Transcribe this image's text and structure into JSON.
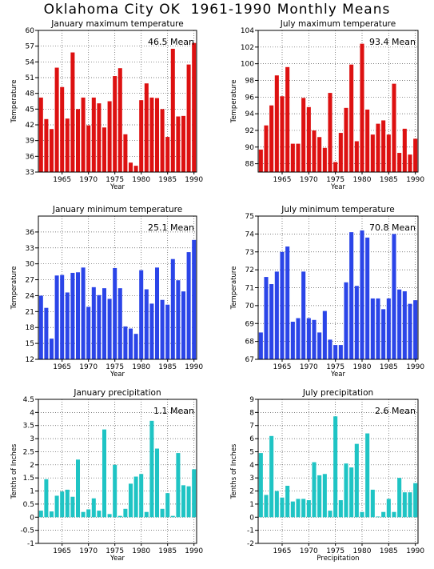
{
  "title": "Oklahoma City OK  1961-1990 Monthly Means",
  "chart_data": [
    {
      "id": "jan-max",
      "type": "bar",
      "title": "January maximum temperature",
      "xlabel": "Year",
      "ylabel": "Temperature",
      "mean_label": "46.5 Mean",
      "color": "#dd1111",
      "ylim": [
        33,
        60
      ],
      "baseline": 33,
      "yticks": [
        33,
        36,
        39,
        42,
        45,
        48,
        51,
        54,
        57,
        60
      ],
      "xlim": [
        1960.5,
        1990.5
      ],
      "xticks": [
        1965,
        1970,
        1975,
        1980,
        1985,
        1990
      ],
      "x": [
        1961,
        1962,
        1963,
        1964,
        1965,
        1966,
        1967,
        1968,
        1969,
        1970,
        1971,
        1972,
        1973,
        1974,
        1975,
        1976,
        1977,
        1978,
        1979,
        1980,
        1981,
        1982,
        1983,
        1984,
        1985,
        1986,
        1987,
        1988,
        1989,
        1990
      ],
      "values": [
        47.2,
        43.1,
        41.2,
        52.9,
        49.2,
        43.2,
        55.8,
        45.0,
        47.2,
        41.9,
        47.2,
        46.1,
        41.5,
        46.5,
        51.3,
        52.8,
        40.2,
        34.8,
        34.2,
        46.7,
        49.9,
        47.2,
        47.1,
        45.0,
        39.7,
        56.5,
        43.6,
        43.7,
        53.5,
        57.6
      ]
    },
    {
      "id": "jul-max",
      "type": "bar",
      "title": "July maximum temperature",
      "xlabel": "Year",
      "ylabel": "Temperature",
      "mean_label": "93.4 Mean",
      "color": "#dd1111",
      "ylim": [
        87,
        104
      ],
      "baseline": 87,
      "yticks": [
        88,
        90,
        92,
        94,
        96,
        98,
        100,
        102,
        104
      ],
      "xlim": [
        1960.5,
        1990.5
      ],
      "xticks": [
        1965,
        1970,
        1975,
        1980,
        1985,
        1990
      ],
      "x": [
        1961,
        1962,
        1963,
        1964,
        1965,
        1966,
        1967,
        1968,
        1969,
        1970,
        1971,
        1972,
        1973,
        1974,
        1975,
        1976,
        1977,
        1978,
        1979,
        1980,
        1981,
        1982,
        1983,
        1984,
        1985,
        1986,
        1987,
        1988,
        1989,
        1990
      ],
      "values": [
        89.7,
        92.6,
        95.0,
        98.6,
        96.1,
        99.6,
        90.4,
        90.4,
        95.9,
        94.8,
        92.0,
        91.2,
        89.9,
        96.5,
        88.2,
        91.7,
        94.7,
        99.9,
        90.7,
        102.4,
        94.5,
        91.5,
        92.8,
        93.2,
        91.5,
        97.6,
        89.3,
        92.2,
        89.1,
        91.0
      ]
    },
    {
      "id": "jan-min",
      "type": "bar",
      "title": "January minimum temperature",
      "xlabel": "Year",
      "ylabel": "Temperature",
      "mean_label": "25.1 Mean",
      "color": "#2b45e8",
      "ylim": [
        12,
        39
      ],
      "baseline": 12,
      "yticks": [
        12,
        15,
        18,
        21,
        24,
        27,
        30,
        33,
        36
      ],
      "xlim": [
        1960.5,
        1990.5
      ],
      "xticks": [
        1965,
        1970,
        1975,
        1980,
        1985,
        1990
      ],
      "x": [
        1961,
        1962,
        1963,
        1964,
        1965,
        1966,
        1967,
        1968,
        1969,
        1970,
        1971,
        1972,
        1973,
        1974,
        1975,
        1976,
        1977,
        1978,
        1979,
        1980,
        1981,
        1982,
        1983,
        1984,
        1985,
        1986,
        1987,
        1988,
        1989,
        1990
      ],
      "values": [
        24.0,
        21.7,
        15.9,
        27.8,
        27.9,
        24.6,
        28.3,
        28.4,
        29.3,
        21.9,
        25.6,
        24.1,
        25.4,
        23.4,
        29.2,
        25.4,
        18.2,
        17.8,
        16.8,
        28.8,
        25.2,
        22.5,
        29.3,
        23.2,
        22.3,
        30.9,
        26.9,
        24.8,
        32.2,
        34.5
      ]
    },
    {
      "id": "jul-min",
      "type": "bar",
      "title": "July minimum temperature",
      "xlabel": "Year",
      "ylabel": "Temperature",
      "mean_label": "70.8 Mean",
      "color": "#2b45e8",
      "ylim": [
        67,
        75
      ],
      "baseline": 67,
      "yticks": [
        67,
        68,
        69,
        70,
        71,
        72,
        73,
        74,
        75
      ],
      "xlim": [
        1960.5,
        1990.5
      ],
      "xticks": [
        1965,
        1970,
        1975,
        1980,
        1985,
        1990
      ],
      "x": [
        1961,
        1962,
        1963,
        1964,
        1965,
        1966,
        1967,
        1968,
        1969,
        1970,
        1971,
        1972,
        1973,
        1974,
        1975,
        1976,
        1977,
        1978,
        1979,
        1980,
        1981,
        1982,
        1983,
        1984,
        1985,
        1986,
        1987,
        1988,
        1989,
        1990
      ],
      "values": [
        68.5,
        71.6,
        71.2,
        71.9,
        73.0,
        73.3,
        69.1,
        69.3,
        71.9,
        69.3,
        69.2,
        68.5,
        69.7,
        68.1,
        67.8,
        67.8,
        71.3,
        74.1,
        71.1,
        74.2,
        73.8,
        70.4,
        70.4,
        69.8,
        70.4,
        74.0,
        70.9,
        70.8,
        70.1,
        70.3
      ]
    },
    {
      "id": "jan-precip",
      "type": "bar",
      "title": "January precipitation",
      "xlabel": "Year",
      "ylabel": "Tenths of Inches",
      "mean_label": "1.1 Mean",
      "color": "#1fc4c4",
      "ylim": [
        -1,
        4.5
      ],
      "baseline": 0,
      "yticks": [
        -1,
        -0.5,
        0,
        0.5,
        1,
        1.5,
        2,
        2.5,
        3,
        3.5,
        4,
        4.5
      ],
      "xlim": [
        1960.5,
        1990.5
      ],
      "xticks": [
        1965,
        1970,
        1975,
        1980,
        1985,
        1990
      ],
      "x": [
        1961,
        1962,
        1963,
        1964,
        1965,
        1966,
        1967,
        1968,
        1969,
        1970,
        1971,
        1972,
        1973,
        1974,
        1975,
        1976,
        1977,
        1978,
        1979,
        1980,
        1981,
        1982,
        1983,
        1984,
        1985,
        1986,
        1987,
        1988,
        1989,
        1990
      ],
      "values": [
        0.25,
        1.45,
        0.22,
        0.82,
        0.98,
        1.05,
        0.78,
        2.2,
        0.2,
        0.3,
        0.72,
        0.25,
        3.35,
        0.12,
        2.0,
        0.05,
        0.32,
        1.28,
        1.55,
        1.65,
        0.2,
        3.68,
        2.62,
        0.32,
        0.92,
        0.05,
        2.45,
        1.22,
        1.18,
        1.83
      ]
    },
    {
      "id": "jul-precip",
      "type": "bar",
      "title": "July precipitation",
      "xlabel": "Precipitation",
      "ylabel": "Tenths of Inches",
      "mean_label": "2.6 Mean",
      "color": "#1fc4c4",
      "ylim": [
        -2,
        9
      ],
      "baseline": 0,
      "yticks": [
        -2,
        -1,
        0,
        1,
        2,
        3,
        4,
        5,
        6,
        7,
        8,
        9
      ],
      "xlim": [
        1960.5,
        1990.5
      ],
      "xticks": [
        1965,
        1970,
        1975,
        1980,
        1985,
        1990
      ],
      "x": [
        1961,
        1962,
        1963,
        1964,
        1965,
        1966,
        1967,
        1968,
        1969,
        1970,
        1971,
        1972,
        1973,
        1974,
        1975,
        1976,
        1977,
        1978,
        1979,
        1980,
        1981,
        1982,
        1983,
        1984,
        1985,
        1986,
        1987,
        1988,
        1989,
        1990
      ],
      "values": [
        4.9,
        1.7,
        6.2,
        2.0,
        1.5,
        2.4,
        1.2,
        1.4,
        1.4,
        1.3,
        4.2,
        3.2,
        3.3,
        0.5,
        7.7,
        1.3,
        4.1,
        3.8,
        5.6,
        0.4,
        6.4,
        2.1,
        0.05,
        0.4,
        1.4,
        0.4,
        3.0,
        1.9,
        1.9,
        2.6
      ]
    }
  ]
}
